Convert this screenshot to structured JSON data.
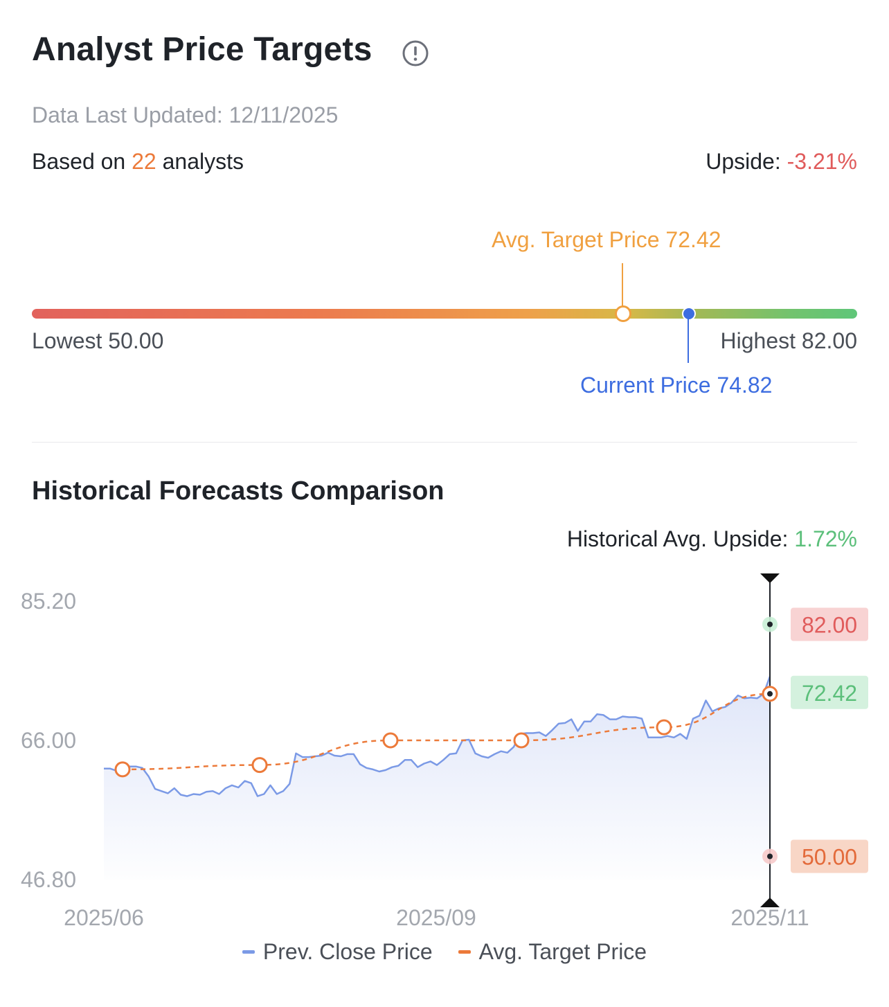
{
  "header": {
    "title": "Analyst Price Targets",
    "info_icon": "info-circle-icon",
    "updated": "Data Last Updated: 12/11/2025",
    "based_prefix": "Based on ",
    "analyst_count": "22",
    "based_suffix": " analysts",
    "upside_label": "Upside: ",
    "upside_value": "-3.21%"
  },
  "range": {
    "avg_label": "Avg. Target Price  72.42",
    "lowest_label": "Lowest  50.00",
    "highest_label": "Highest  82.00",
    "current_label": "Current Price  74.82",
    "low": 50.0,
    "high": 82.0,
    "avg": 72.42,
    "current": 74.82
  },
  "historical": {
    "title": "Historical Forecasts Comparison",
    "upside_label": "Historical Avg. Upside: ",
    "upside_value": "1.72%"
  },
  "colors": {
    "price_line": "#7b9ae6",
    "target_line": "#ec7a3a",
    "high_badge_bg": "#f8d3d3",
    "high_badge_text": "#e05b5b",
    "avg_badge_bg": "#d4f1de",
    "avg_badge_text": "#5bbf7a",
    "low_badge_bg": "#f8d6c6",
    "low_badge_text": "#e36a3a"
  },
  "chart_data": {
    "type": "line",
    "title": "Historical Forecasts Comparison",
    "ylim": [
      46.8,
      85.2
    ],
    "yticks": [
      "85.20",
      "66.00",
      "46.80"
    ],
    "xticks": [
      "2025/06",
      "2025/09",
      "2025/11"
    ],
    "xlim": [
      "2025/06",
      "2025/11"
    ],
    "grid": false,
    "legend_position": "bottom",
    "series": [
      {
        "name": "Prev. Close Price",
        "values": [
          62.1,
          62.1,
          61.8,
          62.7,
          62.4,
          62.4,
          62.2,
          61.0,
          59.3,
          59.0,
          58.7,
          59.4,
          58.5,
          58.3,
          58.6,
          58.5,
          58.9,
          59.0,
          58.6,
          59.4,
          59.8,
          59.5,
          60.4,
          60.1,
          58.3,
          58.6,
          59.8,
          58.6,
          59.0,
          60.0,
          64.2,
          63.7,
          63.7,
          63.8,
          63.9,
          64.3,
          63.9,
          63.8,
          64.1,
          64.1,
          62.7,
          62.2,
          62.0,
          61.7,
          61.9,
          62.3,
          62.5,
          63.3,
          63.3,
          62.3,
          62.8,
          63.1,
          62.6,
          63.3,
          64.1,
          64.2,
          66.0,
          66.1,
          64.2,
          63.8,
          63.6,
          64.1,
          64.5,
          64.3,
          65.1,
          66.9,
          67.0,
          67.0,
          67.1,
          66.6,
          67.4,
          68.3,
          68.4,
          68.9,
          67.3,
          68.6,
          68.6,
          69.6,
          69.5,
          68.9,
          68.9,
          69.3,
          69.2,
          69.2,
          69.0,
          66.4,
          66.4,
          66.4,
          66.6,
          66.4,
          66.9,
          66.2,
          69.0,
          69.4,
          71.5,
          70.0,
          70.4,
          70.6,
          71.2,
          72.2,
          71.8,
          71.9,
          71.8,
          72.4,
          74.82
        ],
        "target_points": [
          62.0,
          62.6,
          66.0,
          66.0,
          67.8,
          72.42
        ]
      },
      {
        "name": "Avg. Target Price",
        "values": [
          62.0,
          62.6,
          66.0,
          66.0,
          67.8,
          72.42
        ]
      }
    ],
    "badges": {
      "high": "82.00",
      "avg": "72.42",
      "low": "50.00"
    }
  }
}
